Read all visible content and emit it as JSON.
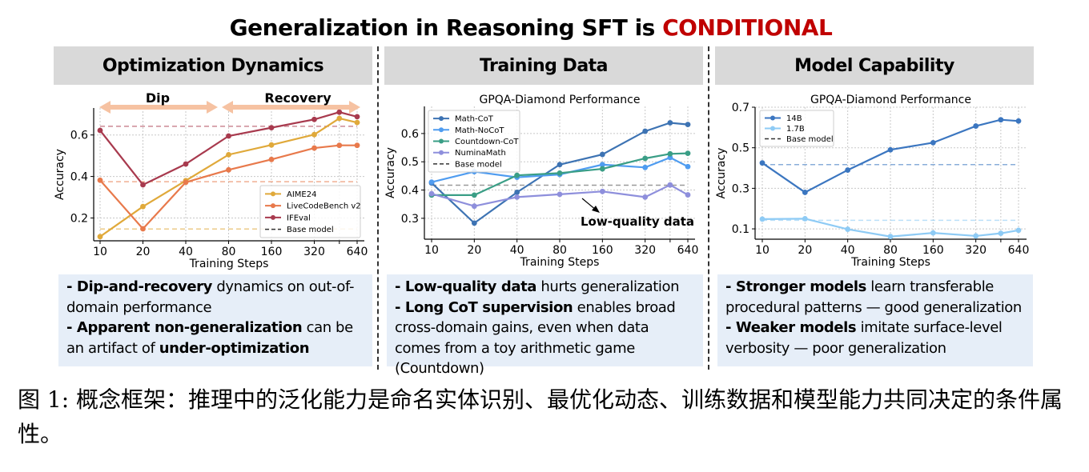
{
  "figure": {
    "title_prefix": "Generalization in Reasoning SFT is ",
    "title_accent": "CONDITIONAL",
    "accent_color": "#c00000",
    "caption": "图 1: 概念框架：推理中的泛化能力是命名实体识别、最优化动态、训练数据和模型能力共同决定的条件属性。"
  },
  "panels": [
    {
      "header": "Optimization Dynamics",
      "bullets": [
        [
          {
            "t": "- Dip-and-recovery",
            "b": true
          },
          {
            "t": " dynamics on out-of-domain performance",
            "b": false
          }
        ],
        [
          {
            "t": "- Apparent non-generalization",
            "b": true
          },
          {
            "t": " can be an artifact of ",
            "b": false
          },
          {
            "t": "under-optimization",
            "b": true
          }
        ]
      ]
    },
    {
      "header": "Training Data",
      "bullets": [
        [
          {
            "t": "- Low-quality data",
            "b": true
          },
          {
            "t": " hurts generalization",
            "b": false
          }
        ],
        [
          {
            "t": "- Long CoT supervision",
            "b": true
          },
          {
            "t": " enables broad cross-domain gains, even when data comes from a toy arithmetic game (Countdown)",
            "b": false
          }
        ]
      ]
    },
    {
      "header": "Model Capability",
      "bullets": [
        [
          {
            "t": "- Stronger models",
            "b": true
          },
          {
            "t": " learn transferable procedural patterns — good generalization",
            "b": false
          }
        ],
        [
          {
            "t": "- Weaker models",
            "b": true
          },
          {
            "t": " imitate surface-level verbosity — poor generalization",
            "b": false
          }
        ]
      ]
    }
  ],
  "chart_data": [
    {
      "type": "line",
      "title": "",
      "xlabel": "Training Steps",
      "ylabel": "Accuracy",
      "x": [
        10,
        20,
        40,
        80,
        160,
        320,
        480,
        640
      ],
      "xticks": [
        "10",
        "20",
        "40",
        "80",
        "160",
        "320",
        "",
        "640"
      ],
      "xscale": "log",
      "yticks": [
        0.2,
        0.4,
        0.6
      ],
      "ytick_labels": [
        "0.2",
        "0.4",
        "0.6"
      ],
      "ylim": [
        0.09,
        0.73
      ],
      "grid": true,
      "legend": "bottom-right",
      "series": [
        {
          "name": "AIME24",
          "color": "#e0a93a",
          "values": [
            0.11,
            0.255,
            0.38,
            0.505,
            0.552,
            0.602,
            0.68,
            0.66
          ],
          "base": 0.147
        },
        {
          "name": "LiveCodeBench v2",
          "color": "#e8794b",
          "values": [
            0.382,
            0.148,
            0.372,
            0.432,
            0.482,
            0.537,
            0.55,
            0.55
          ],
          "base": 0.375
        },
        {
          "name": "IFEval",
          "color": "#a83a4e",
          "values": [
            0.622,
            0.36,
            0.46,
            0.595,
            0.635,
            0.675,
            0.71,
            0.688
          ],
          "base": 0.642
        }
      ],
      "base_label": "Base model",
      "annotations": {
        "dip": "Dip",
        "recovery": "Recovery"
      }
    },
    {
      "type": "line",
      "title": "GPQA-Diamond Performance",
      "xlabel": "Training Steps",
      "ylabel": "Accuracy",
      "x": [
        10,
        20,
        40,
        80,
        160,
        320,
        480,
        640
      ],
      "xticks": [
        "10",
        "20",
        "40",
        "80",
        "160",
        "320",
        "",
        "640"
      ],
      "xscale": "log",
      "yticks": [
        0.3,
        0.4,
        0.5,
        0.6
      ],
      "ytick_labels": [
        "0.3",
        "0.4",
        "0.5",
        "0.6"
      ],
      "ylim": [
        0.226,
        0.696
      ],
      "grid": true,
      "legend": "top-left",
      "series": [
        {
          "name": "Math-CoT",
          "color": "#3d73b3",
          "values": [
            0.425,
            0.283,
            0.392,
            0.49,
            0.526,
            0.608,
            0.638,
            0.632
          ]
        },
        {
          "name": "Math-NoCoT",
          "color": "#4f9cf0",
          "values": [
            0.428,
            0.465,
            0.445,
            0.455,
            0.49,
            0.48,
            0.515,
            0.483
          ]
        },
        {
          "name": "Countdown-CoT",
          "color": "#3a9e86",
          "values": [
            0.382,
            0.382,
            0.452,
            0.46,
            0.475,
            0.512,
            0.528,
            0.53
          ]
        },
        {
          "name": "NuminaMath",
          "color": "#8e8fdc",
          "values": [
            0.387,
            0.343,
            0.375,
            0.385,
            0.395,
            0.375,
            0.418,
            0.383
          ]
        }
      ],
      "base_label": "Base model",
      "base_value": 0.417,
      "annotations": {
        "low_quality": "Low-quality data"
      }
    },
    {
      "type": "line",
      "title": "GPQA-Diamond Performance",
      "xlabel": "Training Steps",
      "ylabel": "Accuracy",
      "x": [
        10,
        20,
        40,
        80,
        160,
        320,
        480,
        640
      ],
      "xticks": [
        "10",
        "20",
        "40",
        "80",
        "160",
        "320",
        "",
        "640"
      ],
      "xscale": "log",
      "yticks": [
        0.1,
        0.3,
        0.5,
        0.7
      ],
      "ytick_labels": [
        "0.1",
        "0.3",
        "0.5",
        "0.7"
      ],
      "ylim": [
        0.049,
        0.7
      ],
      "grid": true,
      "legend": "top-left",
      "series": [
        {
          "name": "14B",
          "color": "#3b76c0",
          "values": [
            0.425,
            0.28,
            0.39,
            0.49,
            0.525,
            0.607,
            0.638,
            0.632
          ],
          "base": 0.417
        },
        {
          "name": "1.7B",
          "color": "#8ecbf5",
          "values": [
            0.148,
            0.15,
            0.098,
            0.062,
            0.08,
            0.065,
            0.078,
            0.093
          ],
          "base": 0.142
        }
      ],
      "base_label": "Base model"
    }
  ]
}
